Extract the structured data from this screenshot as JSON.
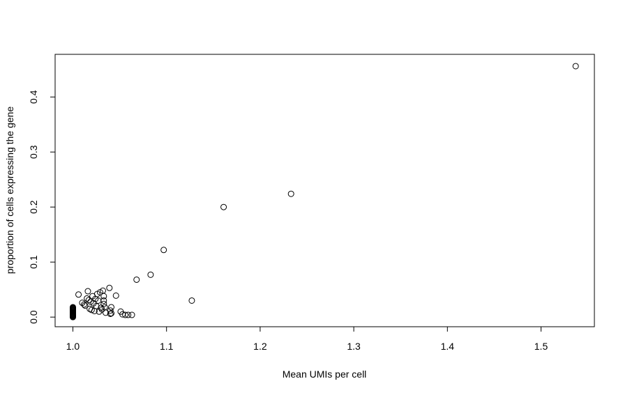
{
  "chart_data": {
    "type": "scatter",
    "title": "",
    "xlabel": "Mean UMIs per cell",
    "ylabel": "proportion of cells expressing the gene",
    "xlim": [
      0.981,
      1.557
    ],
    "ylim": [
      -0.0175,
      0.4775
    ],
    "xticks": [
      1.0,
      1.1,
      1.2,
      1.3,
      1.4,
      1.5
    ],
    "xtick_labels": [
      "1.0",
      "1.1",
      "1.2",
      "1.3",
      "1.4",
      "1.5"
    ],
    "yticks": [
      0.0,
      0.1,
      0.2,
      0.3,
      0.4
    ],
    "ytick_labels": [
      "0.0",
      "0.1",
      "0.2",
      "0.3",
      "0.4"
    ],
    "grid": false,
    "legend": "none",
    "points": [
      {
        "x": 1.0,
        "y": 0.0
      },
      {
        "x": 1.0,
        "y": 0.001
      },
      {
        "x": 1.0,
        "y": 0.002
      },
      {
        "x": 1.0,
        "y": 0.003
      },
      {
        "x": 1.0,
        "y": 0.004
      },
      {
        "x": 1.0,
        "y": 0.005
      },
      {
        "x": 1.0,
        "y": 0.006
      },
      {
        "x": 1.0,
        "y": 0.007
      },
      {
        "x": 1.0,
        "y": 0.008
      },
      {
        "x": 1.0,
        "y": 0.009
      },
      {
        "x": 1.0,
        "y": 0.01
      },
      {
        "x": 1.0,
        "y": 0.011
      },
      {
        "x": 1.0,
        "y": 0.012
      },
      {
        "x": 1.0,
        "y": 0.013
      },
      {
        "x": 1.0,
        "y": 0.014
      },
      {
        "x": 1.0,
        "y": 0.015
      },
      {
        "x": 1.0,
        "y": 0.016
      },
      {
        "x": 1.0,
        "y": 0.017
      },
      {
        "x": 1.0,
        "y": 0.018
      },
      {
        "x": 1.006,
        "y": 0.041
      },
      {
        "x": 1.01,
        "y": 0.026
      },
      {
        "x": 1.012,
        "y": 0.023
      },
      {
        "x": 1.013,
        "y": 0.021
      },
      {
        "x": 1.015,
        "y": 0.034
      },
      {
        "x": 1.016,
        "y": 0.047
      },
      {
        "x": 1.017,
        "y": 0.031
      },
      {
        "x": 1.018,
        "y": 0.015
      },
      {
        "x": 1.019,
        "y": 0.028
      },
      {
        "x": 1.02,
        "y": 0.013
      },
      {
        "x": 1.021,
        "y": 0.038
      },
      {
        "x": 1.022,
        "y": 0.025
      },
      {
        "x": 1.023,
        "y": 0.011
      },
      {
        "x": 1.024,
        "y": 0.033
      },
      {
        "x": 1.025,
        "y": 0.02
      },
      {
        "x": 1.026,
        "y": 0.042
      },
      {
        "x": 1.027,
        "y": 0.03
      },
      {
        "x": 1.028,
        "y": 0.01
      },
      {
        "x": 1.029,
        "y": 0.045
      },
      {
        "x": 1.03,
        "y": 0.017
      },
      {
        "x": 1.031,
        "y": 0.014
      },
      {
        "x": 1.032,
        "y": 0.048
      },
      {
        "x": 1.033,
        "y": 0.038
      },
      {
        "x": 1.033,
        "y": 0.03
      },
      {
        "x": 1.033,
        "y": 0.024
      },
      {
        "x": 1.034,
        "y": 0.018
      },
      {
        "x": 1.035,
        "y": 0.008
      },
      {
        "x": 1.039,
        "y": 0.053
      },
      {
        "x": 1.04,
        "y": 0.012
      },
      {
        "x": 1.041,
        "y": 0.007
      },
      {
        "x": 1.041,
        "y": 0.018
      },
      {
        "x": 1.04,
        "y": 0.006
      },
      {
        "x": 1.046,
        "y": 0.039
      },
      {
        "x": 1.051,
        "y": 0.01
      },
      {
        "x": 1.053,
        "y": 0.005
      },
      {
        "x": 1.056,
        "y": 0.004
      },
      {
        "x": 1.059,
        "y": 0.004
      },
      {
        "x": 1.063,
        "y": 0.004
      },
      {
        "x": 1.068,
        "y": 0.068
      },
      {
        "x": 1.083,
        "y": 0.077
      },
      {
        "x": 1.097,
        "y": 0.122
      },
      {
        "x": 1.127,
        "y": 0.03
      },
      {
        "x": 1.161,
        "y": 0.2
      },
      {
        "x": 1.233,
        "y": 0.224
      },
      {
        "x": 1.537,
        "y": 0.456
      }
    ]
  }
}
